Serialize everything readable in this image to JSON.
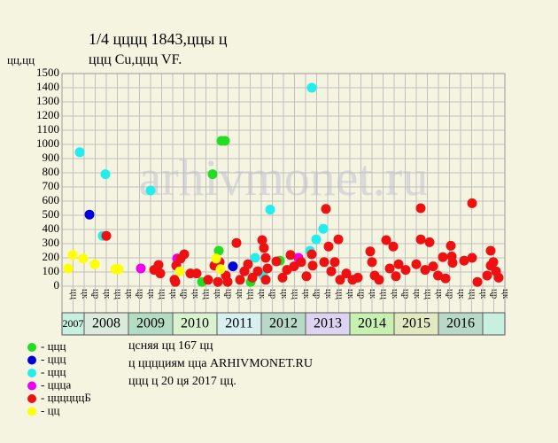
{
  "chart_data": {
    "type": "scatter",
    "title": "1/4 цццц 1843,ццы ц",
    "subtitle": "ццц Cu,ццц VF.",
    "y_label": "цц,цц",
    "watermark": "arhivmonet.ru",
    "notes": [
      "цcняя цц 167 цц",
      "ц цццциям цца ARHIVMONET.RU",
      "ццц ц 20 ця 2017 цц."
    ],
    "xlim": [
      2007.5,
      2017.5
    ],
    "ylim": [
      0,
      1500
    ],
    "yticks": [
      0,
      100,
      200,
      300,
      400,
      500,
      600,
      700,
      800,
      900,
      1000,
      1100,
      1200,
      1300,
      1400,
      1500
    ],
    "grid": true,
    "quarter_labels": [
      "цц",
      "цк",
      "цр",
      "цк",
      "цц",
      "цк",
      "цр",
      "цк",
      "цц",
      "цк",
      "цр",
      "цк",
      "цц",
      "цк",
      "цр",
      "цк",
      "цц",
      "цк",
      "цр",
      "цк",
      "цц",
      "цк",
      "цр",
      "цк",
      "цц",
      "цк",
      "цр",
      "цк",
      "цц",
      "цк",
      "цр",
      "цк",
      "цц",
      "цк",
      "цр",
      "цк",
      "цц",
      "цк",
      "цр",
      "цк"
    ],
    "year_bands": [
      {
        "label": "2007",
        "start": 2007.5,
        "end": 2008,
        "color": "#c8f0e0"
      },
      {
        "label": "2008",
        "start": 2008,
        "end": 2009,
        "color": "#dceadc"
      },
      {
        "label": "2009",
        "start": 2009,
        "end": 2010,
        "color": "#b4dcc4"
      },
      {
        "label": "2010",
        "start": 2010,
        "end": 2011,
        "color": "#daf2d0"
      },
      {
        "label": "2011",
        "start": 2011,
        "end": 2012,
        "color": "#d8f0f0"
      },
      {
        "label": "2012",
        "start": 2012,
        "end": 2013,
        "color": "#b8d8c8"
      },
      {
        "label": "2013",
        "start": 2013,
        "end": 2014,
        "color": "#dcd4f0"
      },
      {
        "label": "2014",
        "start": 2014,
        "end": 2015,
        "color": "#c8f0b0"
      },
      {
        "label": "2015",
        "start": 2015,
        "end": 2016,
        "color": "#e2e8c0"
      },
      {
        "label": "2016",
        "start": 2016,
        "end": 2017,
        "color": "#b8d8c8"
      },
      {
        "label": null,
        "start": 2017,
        "end": 2017.5,
        "color": "#c8f0e0"
      }
    ],
    "series": [
      {
        "name": "- ццц",
        "color": "#22dd22",
        "x": [
          2011.1,
          2011.18,
          2010.9,
          2011.04,
          2010.66,
          2011.76,
          2012.42
        ],
        "values": [
          1025,
          1025,
          790,
          250,
          30,
          30,
          180
        ]
      },
      {
        "name": "- ццц",
        "color": "#0000dd",
        "x": [
          2008.12,
          2011.36
        ],
        "values": [
          505,
          140
        ]
      },
      {
        "name": "- ццц",
        "color": "#22eeee",
        "x": [
          2007.9,
          2008.48,
          2008.42,
          2009.5,
          2011.86,
          2012.2,
          2013.14,
          2013.24,
          2013.4,
          2013.1,
          2012.04
        ],
        "values": [
          945,
          790,
          355,
          675,
          200,
          540,
          1400,
          330,
          405,
          250,
          75
        ]
      },
      {
        "name": "- ццца",
        "color": "#ee00ee",
        "x": [
          2009.28,
          2010.1,
          2012.84
        ],
        "values": [
          125,
          195,
          200
        ]
      },
      {
        "name": "- ццццццБ",
        "color": "#ee1111",
        "x": [
          2008.5,
          2009.58,
          2009.68,
          2009.72,
          2010.06,
          2010.08,
          2010.18,
          2010.26,
          2010.04,
          2010.4,
          2010.54,
          2010.8,
          2010.94,
          2011.06,
          2011.02,
          2011.2,
          2011.24,
          2011.44,
          2011.52,
          2011.62,
          2011.7,
          2011.8,
          2011.92,
          2012.02,
          2012.06,
          2012.1,
          2012.14,
          2012.1,
          2012.34,
          2012.48,
          2012.58,
          2012.66,
          2012.74,
          2012.9,
          2013.02,
          2013.14,
          2013.16,
          2013.46,
          2013.42,
          2013.52,
          2013.58,
          2013.66,
          2013.74,
          2013.78,
          2013.92,
          2014.06,
          2014.18,
          2014.46,
          2014.5,
          2014.56,
          2014.66,
          2014.82,
          2014.9,
          2014.98,
          2015.04,
          2015.1,
          2015.26,
          2015.5,
          2015.6,
          2015.6,
          2015.7,
          2015.8,
          2015.88,
          2015.99,
          2016.1,
          2016.16,
          2016.28,
          2016.32,
          2016.3,
          2016.58,
          2016.76,
          2016.76,
          2016.88,
          2017.1,
          2017.18,
          2017.18,
          2017.3,
          2017.36,
          2017.24
        ],
        "values": [
          355,
          115,
          150,
          90,
          30,
          145,
          195,
          225,
          45,
          90,
          90,
          45,
          145,
          170,
          30,
          75,
          30,
          305,
          45,
          105,
          155,
          60,
          105,
          325,
          270,
          200,
          125,
          45,
          175,
          60,
          115,
          220,
          140,
          170,
          70,
          225,
          145,
          545,
          170,
          280,
          105,
          170,
          330,
          45,
          90,
          45,
          60,
          245,
          170,
          75,
          45,
          325,
          125,
          280,
          70,
          155,
          115,
          155,
          550,
          330,
          115,
          310,
          140,
          75,
          205,
          55,
          285,
          165,
          210,
          180,
          200,
          585,
          30,
          75,
          250,
          145,
          105,
          60,
          170
        ]
      },
      {
        "name": "- цц",
        "color": "#ffff00",
        "x": [
          2007.64,
          2007.74,
          2007.98,
          2008.24,
          2008.7,
          2008.78,
          2010.16,
          2010.98,
          2011.08
        ],
        "values": [
          125,
          220,
          195,
          155,
          120,
          120,
          105,
          195,
          120
        ]
      }
    ]
  }
}
